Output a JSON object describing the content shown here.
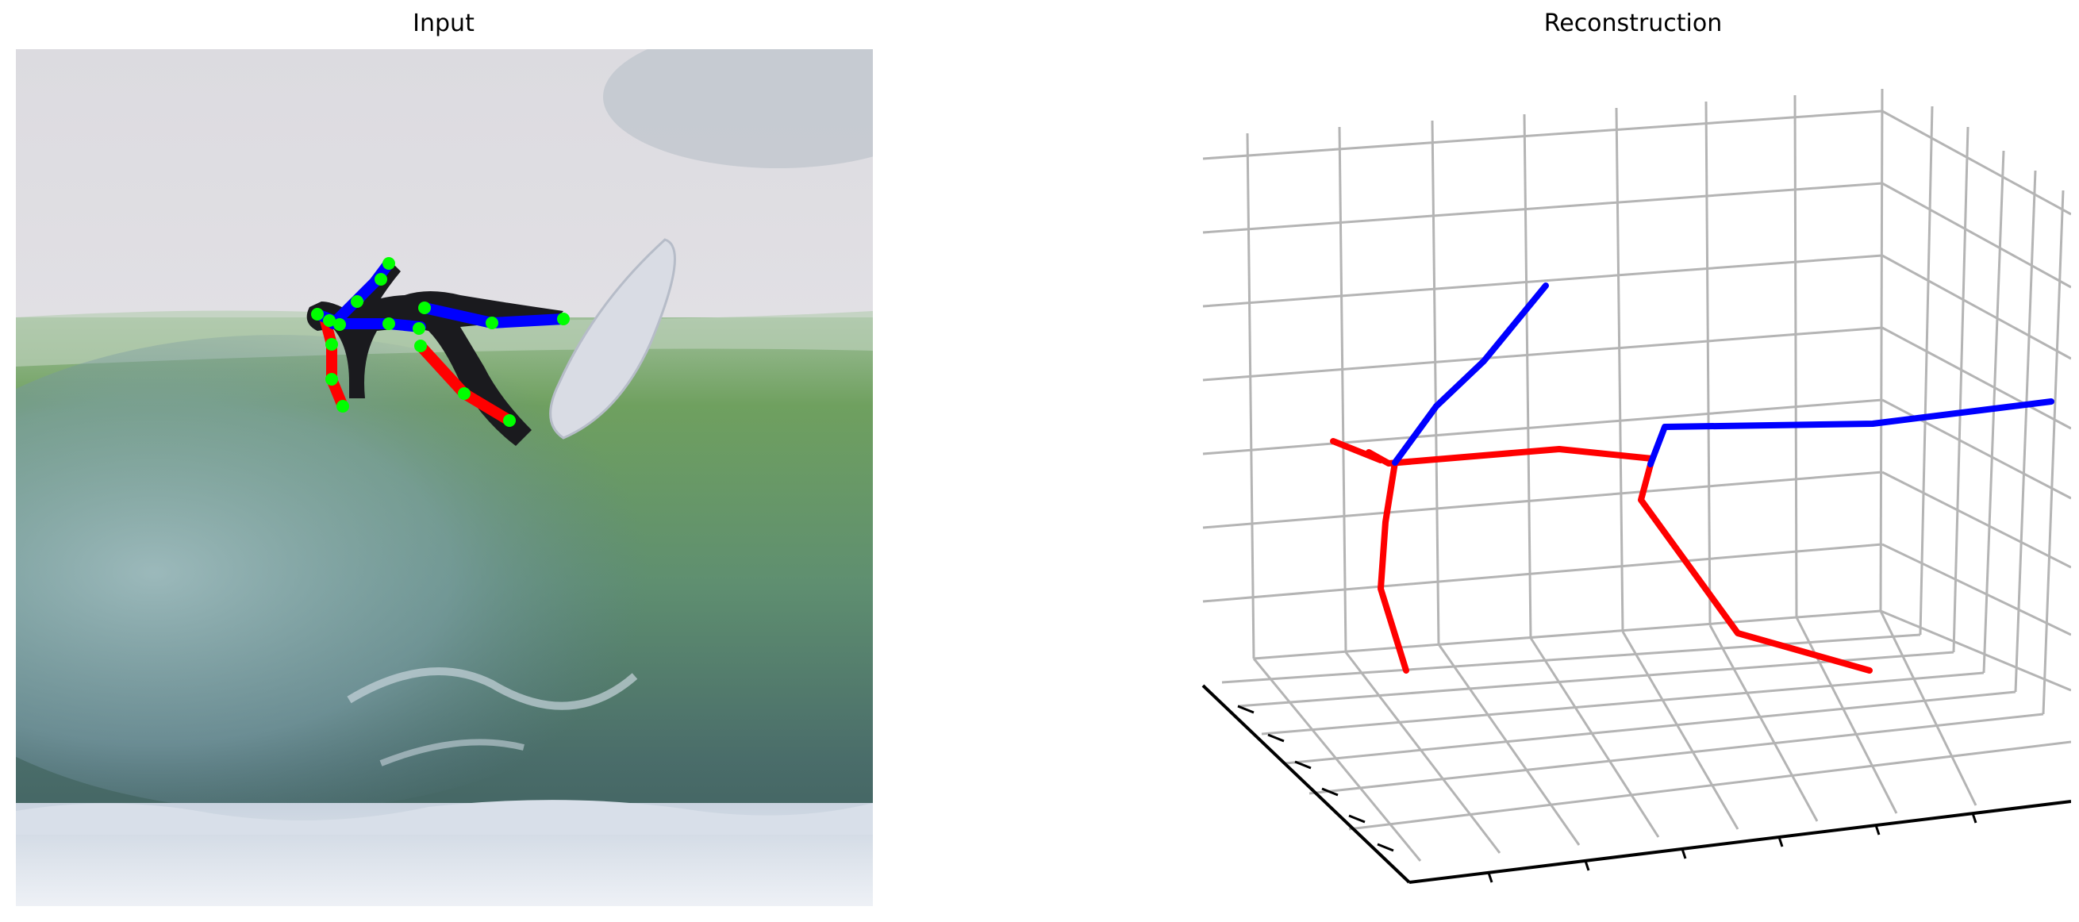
{
  "panels": {
    "input": {
      "title": "Input"
    },
    "reconstruction": {
      "title": "Reconstruction"
    }
  },
  "colors": {
    "left_limbs": "#ff0000",
    "right_limbs": "#0000ff",
    "joints": "#00ff00",
    "grid": "#b4b4b4",
    "axis": "#000000"
  }
}
